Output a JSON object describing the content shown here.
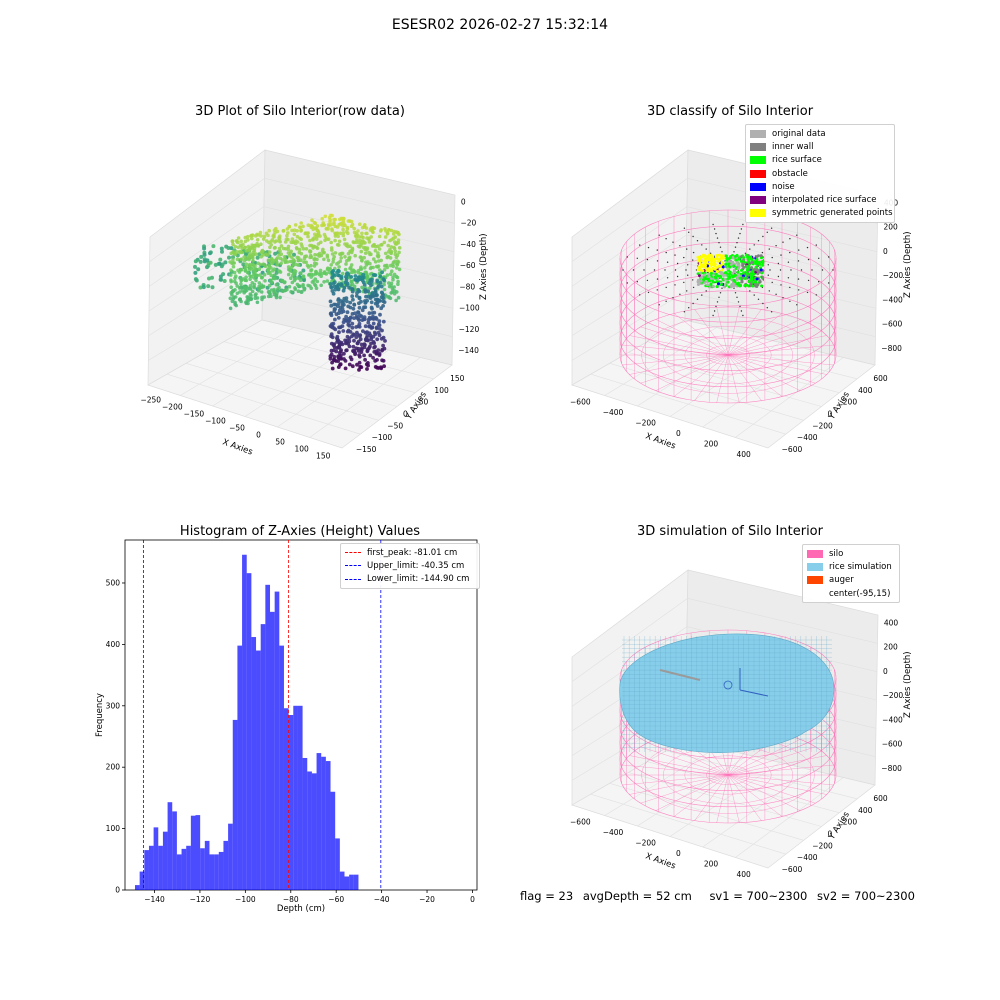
{
  "suptitle": "ESESR02 2026-02-27 15:32:14",
  "status": {
    "flag": "flag = 23",
    "avg_depth": "avgDepth = 52 cm",
    "sv1": "sv1 = 700~2300",
    "sv2": "sv2 = 700~2300"
  },
  "chart_data": [
    {
      "type": "scatter",
      "title": "3D Plot of Silo Interior(row data)",
      "xlabel": "X Axies",
      "ylabel": "Y Axies",
      "zlabel": "Z Axies (Depth)",
      "x_ticks": [
        "−250",
        "−200",
        "−150",
        "−100",
        "−50",
        "0",
        "50",
        "100",
        "150"
      ],
      "y_ticks": [
        "−150",
        "−100",
        "−50",
        "0",
        "50",
        "100",
        "150"
      ],
      "z_ticks": [
        "0",
        "−20",
        "−40",
        "−60",
        "−80",
        "−100",
        "−120",
        "−140"
      ],
      "xlim": [
        -270,
        160
      ],
      "ylim": [
        -160,
        160
      ],
      "zlim": [
        -150,
        5
      ],
      "colormap": "viridis"
    },
    {
      "type": "scatter",
      "title": "3D classify of Silo Interior",
      "xlabel": "X Axies",
      "ylabel": "Y Axies",
      "zlabel": "Z Axies (Depth)",
      "x_ticks": [
        "−600",
        "−400",
        "−200",
        "0",
        "200",
        "400"
      ],
      "y_ticks": [
        "−600",
        "−400",
        "−200",
        "0",
        "200",
        "400",
        "600"
      ],
      "z_ticks": [
        "400",
        "200",
        "0",
        "−200",
        "−400",
        "−600",
        "−800"
      ],
      "legend": [
        {
          "label": "original data",
          "color": "#b0b0b0"
        },
        {
          "label": "inner wall",
          "color": "#808080"
        },
        {
          "label": "rice surface",
          "color": "#00ff00"
        },
        {
          "label": "obstacle",
          "color": "#ff0000"
        },
        {
          "label": "noise",
          "color": "#0000ff"
        },
        {
          "label": "interpolated rice surface",
          "color": "#800080"
        },
        {
          "label": "symmetric generated points",
          "color": "#ffff00"
        }
      ],
      "wire_color": "#ff69b4"
    },
    {
      "type": "bar",
      "title": "Histogram of Z-Axies (Height) Values",
      "xlabel": "Depth (cm)",
      "ylabel": "Frequency",
      "xlim": [
        -153,
        2
      ],
      "ylim": [
        0,
        570
      ],
      "x_ticks": [
        -140,
        -120,
        -100,
        -80,
        -60,
        -40,
        -20,
        0
      ],
      "x_tick_labels": [
        "−140",
        "−120",
        "−100",
        "−80",
        "−60",
        "−40",
        "−20",
        "0"
      ],
      "y_ticks": [
        0,
        100,
        200,
        300,
        400,
        500
      ],
      "y_tick_labels": [
        "0",
        "100",
        "200",
        "300",
        "400",
        "500"
      ],
      "bin_start": -148.6,
      "bin_width": 2.05,
      "values": [
        8,
        30,
        65,
        72,
        102,
        72,
        95,
        143,
        128,
        58,
        67,
        72,
        121,
        122,
        68,
        80,
        58,
        58,
        62,
        80,
        108,
        277,
        398,
        546,
        516,
        412,
        390,
        433,
        497,
        453,
        486,
        398,
        296,
        285,
        300,
        300,
        215,
        193,
        190,
        223,
        217,
        210,
        160,
        84,
        30,
        22,
        25,
        25
      ],
      "bar_color": "#0000ff",
      "bar_alpha": 0.7,
      "vlines": [
        {
          "label": "first_peak: -81.01 cm",
          "x": -81.01,
          "color": "#ff0000"
        },
        {
          "label": "Upper_limit: -40.35 cm",
          "x": -40.35,
          "color": "#0000ff"
        },
        {
          "label": "Lower_limit: -144.90 cm",
          "x": -144.9,
          "color": "#0000ff"
        }
      ]
    },
    {
      "type": "scatter",
      "title": "3D simulation of Silo Interior",
      "xlabel": "X Axies",
      "ylabel": "Y Axies",
      "zlabel": "Z Axies (Depth)",
      "x_ticks": [
        "−600",
        "−400",
        "−200",
        "0",
        "200",
        "400"
      ],
      "y_ticks": [
        "−600",
        "−400",
        "−200",
        "0",
        "200",
        "400",
        "600"
      ],
      "z_ticks": [
        "400",
        "200",
        "0",
        "−200",
        "−400",
        "−600",
        "−800"
      ],
      "legend": [
        {
          "label": "silo",
          "color": "#ff69b4"
        },
        {
          "label": "rice simulation",
          "color": "#87ceeb"
        },
        {
          "label": "auger",
          "color": "#ff4500"
        },
        {
          "label": "center(-95,15)",
          "color": ""
        }
      ],
      "wire_color": "#ff69b4",
      "surface_color": "#87ceeb"
    }
  ]
}
